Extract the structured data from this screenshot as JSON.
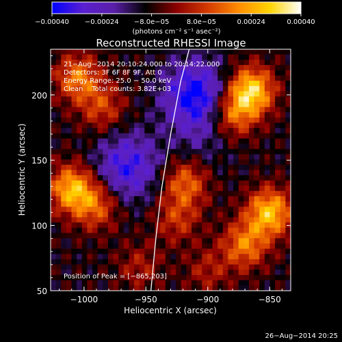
{
  "chart_data": {
    "type": "heatmap",
    "title": "Reconstructed RHESSI Image",
    "xlabel": "Heliocentric X (arcsec)",
    "ylabel": "Heliocentric Y (arcsec)",
    "xlim": [
      -1027,
      -833
    ],
    "ylim": [
      50,
      235
    ],
    "x_ticks": [
      -1000,
      -950,
      -900,
      -850
    ],
    "x_tick_labels": [
      "−1000",
      "−950",
      "−900",
      "−850"
    ],
    "y_ticks": [
      50,
      100,
      150,
      200
    ],
    "y_tick_labels": [
      "50",
      "100",
      "150",
      "200"
    ],
    "colorbar": {
      "range": [
        -0.0004,
        0.0004
      ],
      "tick_labels": [
        "−0.00040",
        "−0.00024",
        "−8.0e−05",
        "8.0e−05",
        "0.00024",
        "0.00040"
      ],
      "unit_label": "(photons cm⁻² s⁻¹ asec⁻²)",
      "colors": [
        "#0000ff",
        "#5a1fd0",
        "#5a1fa8",
        "#000000",
        "#8b0000",
        "#d43a00",
        "#ff8c00",
        "#ffd400",
        "#ffffff"
      ]
    },
    "annotations": [
      "21−Aug−2014 20:10:24.000 to 20:14:22.000",
      "Detectors: 3F 6F 8F 9F, Att 0",
      "Energy Range: 25.0 − 50.0 keV",
      "Clean    Total counts: 3.82E+03"
    ],
    "peak_label": "Position of Peak = [−865,203]",
    "peak_position": [
      -865,
      203
    ],
    "hot_spots": [
      {
        "x": -1005,
        "y": 213,
        "v": 0.00026
      },
      {
        "x": -985,
        "y": 190,
        "v": 0.00018
      },
      {
        "x": -1010,
        "y": 128,
        "v": 0.00034
      },
      {
        "x": -990,
        "y": 115,
        "v": 0.00022
      },
      {
        "x": -918,
        "y": 133,
        "v": 0.00024
      },
      {
        "x": -925,
        "y": 105,
        "v": 0.00016
      },
      {
        "x": -865,
        "y": 203,
        "v": 0.0004
      },
      {
        "x": -880,
        "y": 185,
        "v": 0.00024
      },
      {
        "x": -850,
        "y": 110,
        "v": 0.00036
      },
      {
        "x": -870,
        "y": 85,
        "v": 0.00026
      },
      {
        "x": -955,
        "y": 68,
        "v": 0.00012
      },
      {
        "x": -900,
        "y": 65,
        "v": 0.00012
      }
    ],
    "cold_spots": [
      {
        "x": -910,
        "y": 200,
        "v": -0.0004
      },
      {
        "x": -965,
        "y": 145,
        "v": -0.00034
      },
      {
        "x": -905,
        "y": 165,
        "v": -0.00016
      }
    ],
    "limb_curve": [
      [
        -946,
        50
      ],
      [
        -942,
        90
      ],
      [
        -937,
        130
      ],
      [
        -930,
        170
      ],
      [
        -922,
        210
      ],
      [
        -915,
        235
      ]
    ],
    "grid": false
  },
  "footer": {
    "timestamp": "26−Aug−2014 20:25"
  }
}
